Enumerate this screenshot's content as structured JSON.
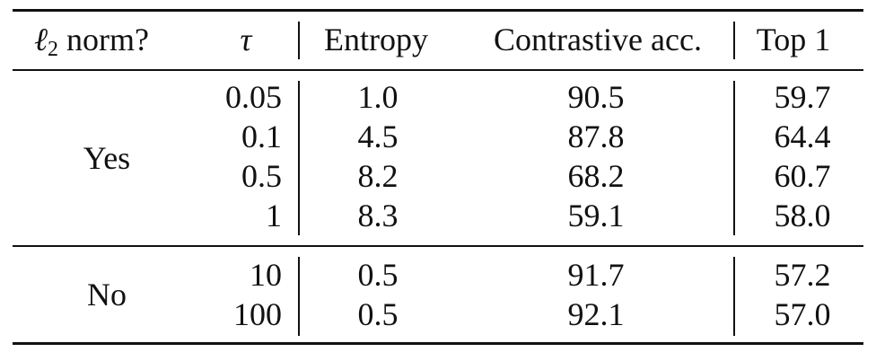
{
  "headers": {
    "l2_ell": "ℓ",
    "l2_sub": "2",
    "l2_rest": " norm?",
    "tau": "τ",
    "entropy": "Entropy",
    "contrastive": "Contrastive acc.",
    "top1": "Top 1"
  },
  "groups": [
    {
      "label": "Yes",
      "rows": [
        {
          "tau": "0.05",
          "entropy": "1.0",
          "contrastive": "90.5",
          "top1": "59.7"
        },
        {
          "tau": "0.1",
          "entropy": "4.5",
          "contrastive": "87.8",
          "top1": "64.4"
        },
        {
          "tau": "0.5",
          "entropy": "8.2",
          "contrastive": "68.2",
          "top1": "60.7"
        },
        {
          "tau": "1",
          "entropy": "8.3",
          "contrastive": "59.1",
          "top1": "58.0"
        }
      ]
    },
    {
      "label": "No",
      "rows": [
        {
          "tau": "10",
          "entropy": "0.5",
          "contrastive": "91.7",
          "top1": "57.2"
        },
        {
          "tau": "100",
          "entropy": "0.5",
          "contrastive": "92.1",
          "top1": "57.0"
        }
      ]
    }
  ]
}
